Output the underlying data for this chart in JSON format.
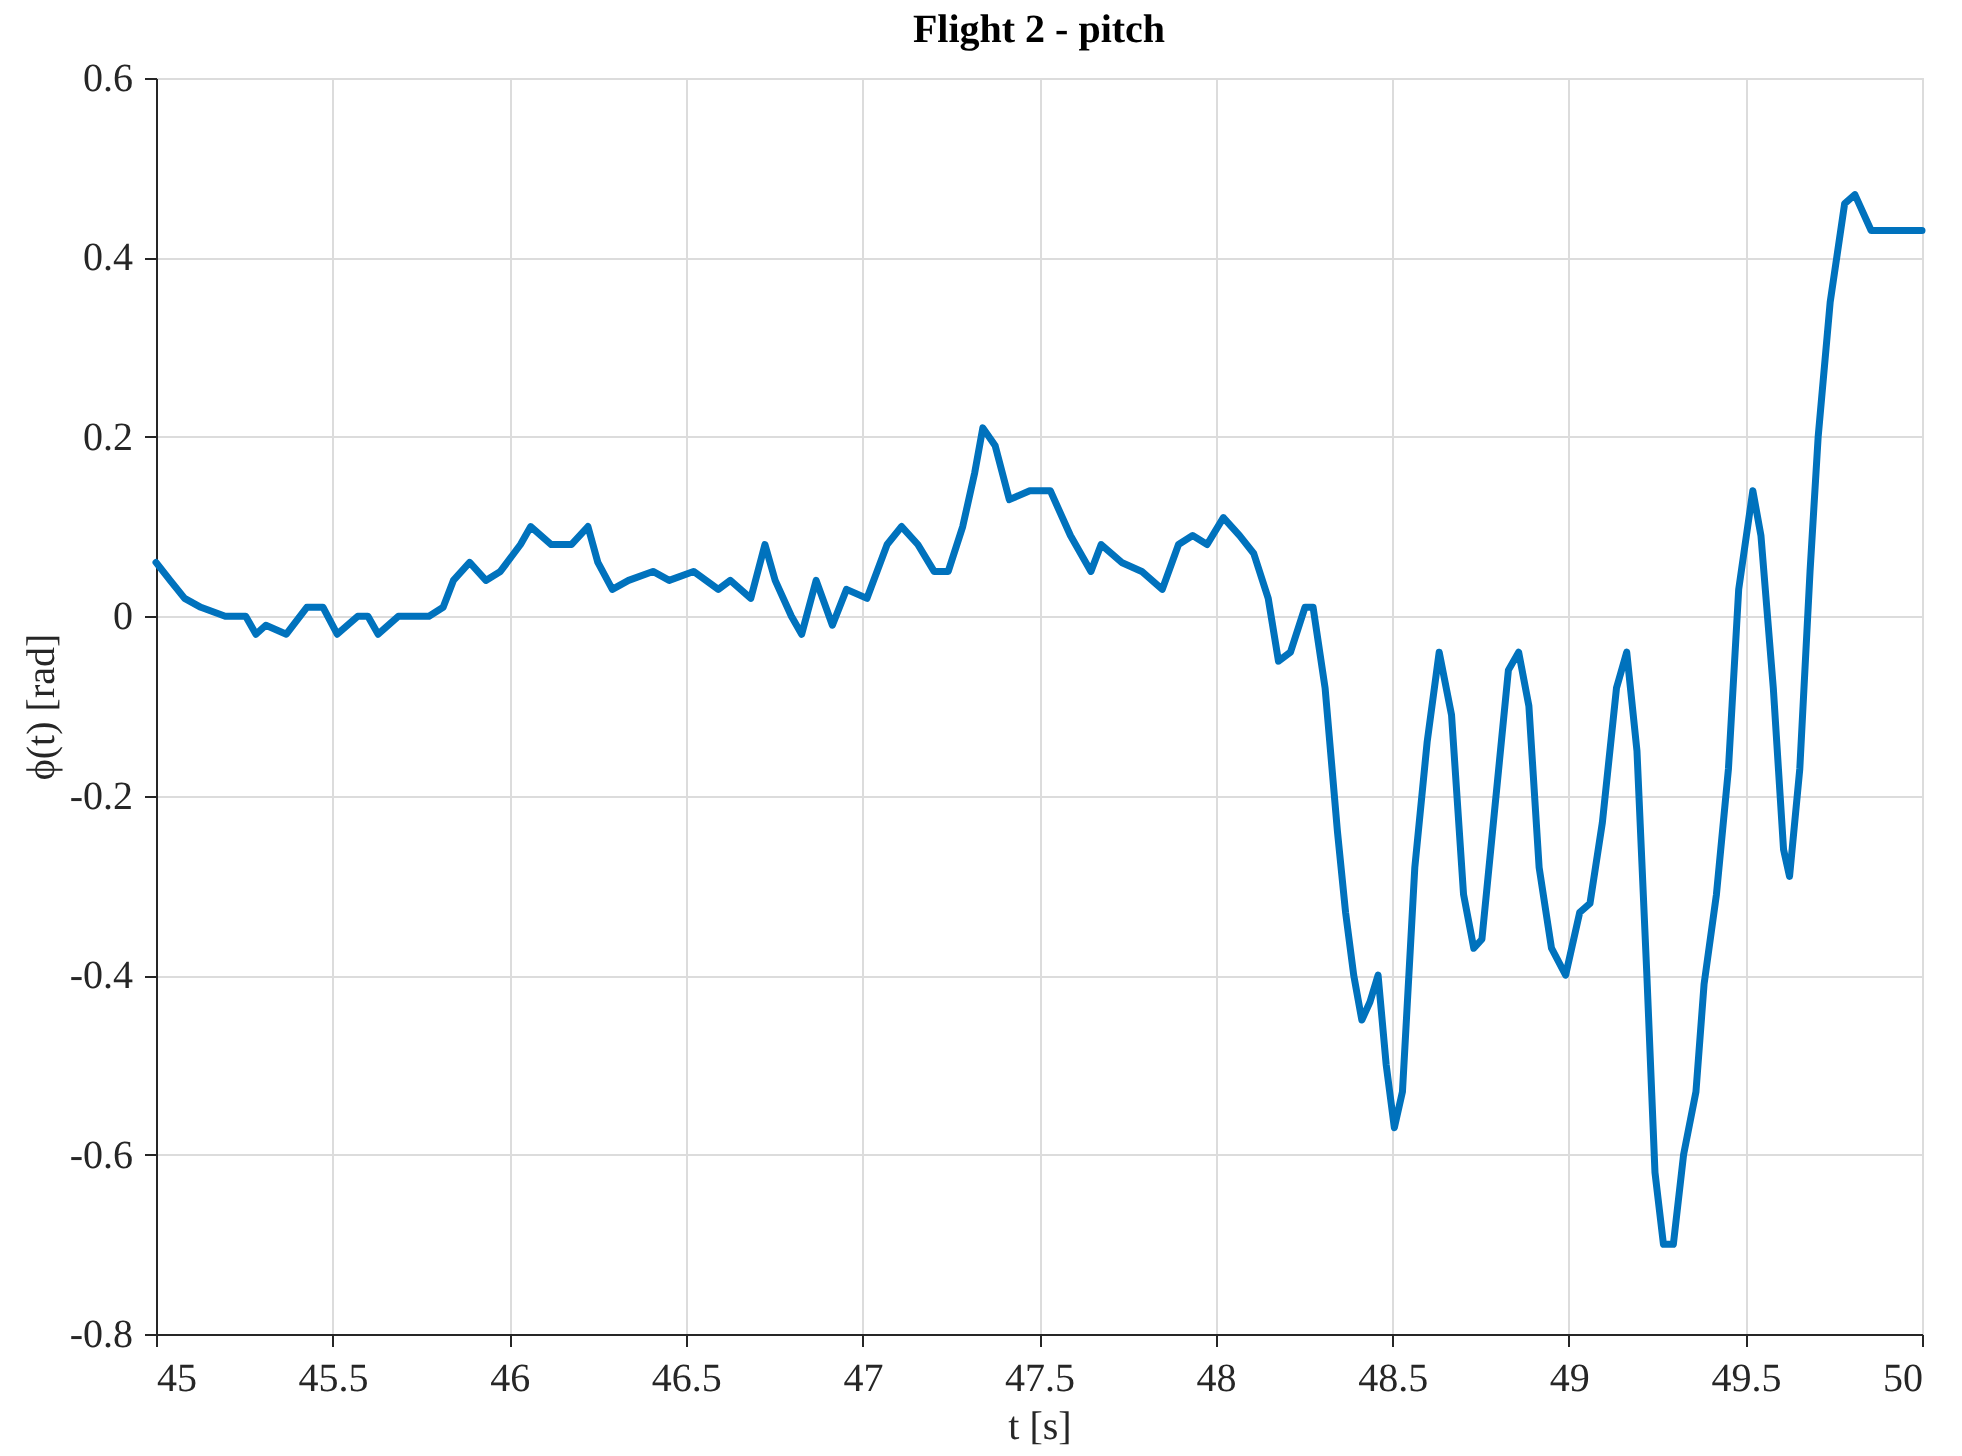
{
  "chart_data": {
    "type": "line",
    "title": "Flight 2 - pitch",
    "xlabel": "t [s]",
    "ylabel": "ϕ(t) [rad]",
    "xlim": [
      45,
      50
    ],
    "xticks": [
      45,
      45.5,
      46,
      46.5,
      47,
      47.5,
      48,
      48.5,
      49,
      49.5,
      50
    ],
    "ylim": [
      -0.8,
      0.6
    ],
    "yticks": [
      -0.8,
      -0.6,
      -0.4,
      -0.2,
      0,
      0.2,
      0.4,
      0.6
    ],
    "grid": true,
    "marker": "none",
    "line_style": "solid",
    "series": [
      {
        "color": "#0072bd",
        "x": [
          45.0,
          45.04,
          45.081,
          45.127,
          45.196,
          45.254,
          45.283,
          45.311,
          45.369,
          45.427,
          45.473,
          45.513,
          45.571,
          45.6,
          45.629,
          45.686,
          45.727,
          45.773,
          45.813,
          45.842,
          45.888,
          45.934,
          45.975,
          46.032,
          46.061,
          46.119,
          46.176,
          46.223,
          46.251,
          46.292,
          46.338,
          46.407,
          46.453,
          46.522,
          46.592,
          46.626,
          46.684,
          46.724,
          46.753,
          46.799,
          46.828,
          46.869,
          46.915,
          46.955,
          47.013,
          47.07,
          47.111,
          47.157,
          47.203,
          47.243,
          47.284,
          47.318,
          47.341,
          47.376,
          47.416,
          47.474,
          47.532,
          47.589,
          47.647,
          47.676,
          47.734,
          47.791,
          47.849,
          47.895,
          47.935,
          47.976,
          48.022,
          48.068,
          48.108,
          48.149,
          48.178,
          48.212,
          48.253,
          48.276,
          48.31,
          48.345,
          48.368,
          48.391,
          48.414,
          48.437,
          48.46,
          48.483,
          48.506,
          48.529,
          48.564,
          48.599,
          48.633,
          48.668,
          48.702,
          48.731,
          48.754,
          48.789,
          48.829,
          48.858,
          48.887,
          48.916,
          48.951,
          48.991,
          49.031,
          49.06,
          49.095,
          49.135,
          49.164,
          49.193,
          49.221,
          49.244,
          49.268,
          49.296,
          49.325,
          49.36,
          49.383,
          49.418,
          49.452,
          49.481,
          49.521,
          49.544,
          49.579,
          49.608,
          49.625,
          49.654,
          49.683,
          49.706,
          49.74,
          49.781,
          49.81,
          49.856,
          49.896,
          49.954,
          50.0
        ],
        "values": [
          0.06,
          0.04,
          0.02,
          0.01,
          0.0,
          0.0,
          -0.02,
          -0.01,
          -0.02,
          0.01,
          0.01,
          -0.02,
          0.0,
          0.0,
          -0.02,
          0.0,
          0.0,
          0.0,
          0.01,
          0.04,
          0.06,
          0.04,
          0.05,
          0.08,
          0.1,
          0.08,
          0.08,
          0.1,
          0.06,
          0.03,
          0.04,
          0.05,
          0.04,
          0.05,
          0.03,
          0.04,
          0.02,
          0.08,
          0.04,
          0.0,
          -0.02,
          0.04,
          -0.01,
          0.03,
          0.02,
          0.08,
          0.1,
          0.08,
          0.05,
          0.05,
          0.1,
          0.16,
          0.21,
          0.19,
          0.13,
          0.14,
          0.14,
          0.09,
          0.05,
          0.08,
          0.06,
          0.05,
          0.03,
          0.08,
          0.09,
          0.08,
          0.11,
          0.09,
          0.07,
          0.02,
          -0.05,
          -0.04,
          0.01,
          0.01,
          -0.08,
          -0.24,
          -0.33,
          -0.4,
          -0.45,
          -0.43,
          -0.4,
          -0.5,
          -0.57,
          -0.53,
          -0.28,
          -0.14,
          -0.04,
          -0.11,
          -0.31,
          -0.37,
          -0.36,
          -0.22,
          -0.06,
          -0.04,
          -0.1,
          -0.28,
          -0.37,
          -0.4,
          -0.33,
          -0.32,
          -0.23,
          -0.08,
          -0.04,
          -0.15,
          -0.4,
          -0.62,
          -0.7,
          -0.7,
          -0.6,
          -0.53,
          -0.41,
          -0.31,
          -0.17,
          0.03,
          0.14,
          0.09,
          -0.08,
          -0.26,
          -0.29,
          -0.17,
          0.05,
          0.2,
          0.35,
          0.46,
          0.47,
          0.43,
          0.43,
          0.43,
          0.43
        ]
      }
    ]
  }
}
